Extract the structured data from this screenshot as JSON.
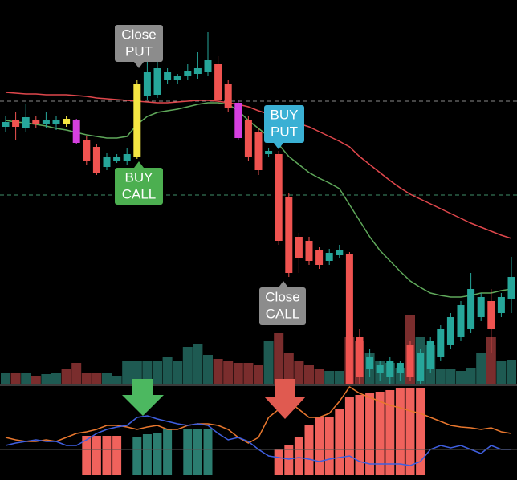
{
  "chart_data": {
    "type": "candlestick",
    "ylim": [
      0,
      480
    ],
    "up_color": "#26a69a",
    "down_color": "#ef5350",
    "candles": [
      {
        "o": 322,
        "h": 335,
        "l": 315,
        "c": 328
      },
      {
        "o": 330,
        "h": 340,
        "l": 305,
        "c": 322
      },
      {
        "o": 320,
        "h": 350,
        "l": 315,
        "c": 334
      },
      {
        "o": 330,
        "h": 335,
        "l": 320,
        "c": 326
      },
      {
        "o": 325,
        "h": 340,
        "l": 320,
        "c": 330
      },
      {
        "o": 325,
        "h": 335,
        "l": 318,
        "c": 330
      },
      {
        "o": 332,
        "h": 335,
        "l": 322,
        "c": 325,
        "color": "#f5e642"
      },
      {
        "o": 330,
        "h": 332,
        "l": 300,
        "c": 302,
        "color": "#d63fe0"
      },
      {
        "o": 305,
        "h": 310,
        "l": 275,
        "c": 280
      },
      {
        "o": 297,
        "h": 300,
        "l": 262,
        "c": 265
      },
      {
        "o": 272,
        "h": 290,
        "l": 268,
        "c": 285
      },
      {
        "o": 280,
        "h": 288,
        "l": 277,
        "c": 284
      },
      {
        "o": 280,
        "h": 295,
        "l": 275,
        "c": 288
      },
      {
        "o": 285,
        "h": 380,
        "l": 282,
        "c": 375,
        "color": "#f5e642"
      },
      {
        "o": 360,
        "h": 405,
        "l": 355,
        "c": 390
      },
      {
        "o": 362,
        "h": 410,
        "l": 358,
        "c": 395
      },
      {
        "o": 380,
        "h": 395,
        "l": 375,
        "c": 390
      },
      {
        "o": 380,
        "h": 388,
        "l": 375,
        "c": 385
      },
      {
        "o": 385,
        "h": 400,
        "l": 380,
        "c": 392
      },
      {
        "o": 388,
        "h": 415,
        "l": 382,
        "c": 395
      },
      {
        "o": 390,
        "h": 440,
        "l": 385,
        "c": 405
      },
      {
        "o": 400,
        "h": 410,
        "l": 350,
        "c": 355
      },
      {
        "o": 375,
        "h": 380,
        "l": 340,
        "c": 345
      },
      {
        "o": 352,
        "h": 355,
        "l": 305,
        "c": 308,
        "color": "#d63fe0"
      },
      {
        "o": 330,
        "h": 335,
        "l": 280,
        "c": 285
      },
      {
        "o": 315,
        "h": 320,
        "l": 262,
        "c": 268
      },
      {
        "o": 288,
        "h": 295,
        "l": 285,
        "c": 292
      },
      {
        "o": 288,
        "h": 292,
        "l": 175,
        "c": 180
      },
      {
        "o": 235,
        "h": 240,
        "l": 135,
        "c": 140
      },
      {
        "o": 185,
        "h": 190,
        "l": 140,
        "c": 158
      },
      {
        "o": 180,
        "h": 185,
        "l": 150,
        "c": 155
      },
      {
        "o": 168,
        "h": 172,
        "l": 145,
        "c": 150
      },
      {
        "o": 155,
        "h": 170,
        "l": 150,
        "c": 165
      },
      {
        "o": 162,
        "h": 175,
        "l": 158,
        "c": 168
      },
      {
        "o": 164,
        "h": 166,
        "l": 0,
        "c": 0
      },
      {
        "o": 60,
        "h": 70,
        "l": 0,
        "c": 10
      },
      {
        "o": 20,
        "h": 45,
        "l": 10,
        "c": 35
      },
      {
        "o": 15,
        "h": 30,
        "l": 5,
        "c": 25
      },
      {
        "o": 10,
        "h": 35,
        "l": 0,
        "c": 30
      },
      {
        "o": 15,
        "h": 30,
        "l": 5,
        "c": 28
      },
      {
        "o": 50,
        "h": 55,
        "l": 5,
        "c": 10
      },
      {
        "o": 5,
        "h": 45,
        "l": 0,
        "c": 40
      },
      {
        "o": 20,
        "h": 60,
        "l": 15,
        "c": 55
      },
      {
        "o": 35,
        "h": 75,
        "l": 30,
        "c": 70
      },
      {
        "o": 50,
        "h": 90,
        "l": 45,
        "c": 85
      },
      {
        "o": 60,
        "h": 105,
        "l": 55,
        "c": 100
      },
      {
        "o": 70,
        "h": 140,
        "l": 65,
        "c": 120
      },
      {
        "o": 85,
        "h": 115,
        "l": 80,
        "c": 110
      },
      {
        "o": 105,
        "h": 120,
        "l": 40,
        "c": 70
      },
      {
        "o": 90,
        "h": 115,
        "l": 85,
        "c": 110
      },
      {
        "o": 108,
        "h": 160,
        "l": 90,
        "c": 135
      }
    ],
    "moving_averages": [
      {
        "color": "#e0474c",
        "values": [
          365,
          364,
          363,
          363,
          362,
          362,
          362,
          361,
          360,
          358,
          357,
          356,
          355,
          354,
          353,
          352,
          352,
          353,
          354,
          355,
          355,
          354,
          352,
          350,
          347,
          342,
          338,
          334,
          330,
          326,
          322,
          316,
          310,
          304,
          297,
          285,
          275,
          265,
          255,
          246,
          238,
          232,
          226,
          220,
          214,
          208,
          202,
          197,
          192,
          187,
          183
        ]
      },
      {
        "color": "#5fa85a",
        "values": [
          330,
          328,
          327,
          325,
          323,
          320,
          318,
          315,
          312,
          310,
          308,
          308,
          310,
          325,
          335,
          340,
          342,
          344,
          347,
          350,
          352,
          352,
          350,
          342,
          330,
          320,
          310,
          300,
          285,
          275,
          265,
          258,
          252,
          245,
          225,
          205,
          185,
          168,
          155,
          142,
          130,
          122,
          115,
          112,
          110,
          110,
          112,
          115,
          115,
          118,
          120
        ]
      }
    ],
    "levels": [
      {
        "value": 354,
        "color": "#8a8a8a"
      },
      {
        "value": 237,
        "color": "#3f8f6a"
      }
    ],
    "volume": {
      "ylim": [
        0,
        480
      ],
      "up_color": "#1e5a52",
      "down_color": "#7a2d2d",
      "values": [
        15,
        15,
        15,
        12,
        14,
        15,
        20,
        28,
        15,
        15,
        15,
        12,
        30,
        30,
        30,
        30,
        35,
        30,
        48,
        52,
        38,
        33,
        30,
        28,
        28,
        25,
        55,
        65,
        40,
        30,
        25,
        20,
        18,
        18,
        60,
        55,
        40,
        30,
        28,
        22,
        88,
        60,
        50,
        20,
        20,
        18,
        22,
        40,
        60,
        30,
        32
      ]
    },
    "indicator": {
      "ylim": [
        -6,
        112
      ],
      "histogram": {
        "values": [
          null,
          null,
          null,
          null,
          null,
          null,
          null,
          null,
          49,
          49,
          49,
          49,
          null,
          47,
          51,
          52,
          57,
          null,
          57,
          57,
          57,
          null,
          null,
          null,
          null,
          null,
          null,
          32,
          37,
          47,
          62,
          72,
          72,
          82,
          97,
          100,
          102,
          104,
          106,
          108,
          109,
          109,
          null,
          null,
          null,
          null,
          null,
          null,
          null,
          null,
          null
        ],
        "colors": [
          null,
          null,
          null,
          null,
          null,
          null,
          null,
          null,
          "#f0625c",
          "#f0625c",
          "#f0625c",
          "#f0625c",
          null,
          "#2b7d70",
          "#2b7d70",
          "#2b7d70",
          "#2b7d70",
          null,
          "#2b7d70",
          "#2b7d70",
          "#2b7d70",
          null,
          null,
          null,
          null,
          null,
          null,
          "#f0625c",
          "#f0625c",
          "#f0625c",
          "#f0625c",
          "#f0625c",
          "#f0625c",
          "#f0625c",
          "#f0625c",
          "#f0625c",
          "#f0625c",
          "#f0625c",
          "#f0625c",
          "#f0625c",
          "#f0625c",
          "#f0625c",
          null,
          null,
          null,
          null,
          null,
          null,
          null,
          null,
          null
        ]
      },
      "lines": [
        {
          "color": "#e8772e",
          "values": [
            47,
            44,
            42,
            42,
            44,
            42,
            47,
            52,
            54,
            57,
            62,
            62,
            60,
            57,
            60,
            62,
            57,
            57,
            62,
            64,
            64,
            62,
            57,
            47,
            40,
            47,
            72,
            82,
            92,
            82,
            72,
            72,
            77,
            92,
            110,
            102,
            97,
            92,
            87,
            84,
            80,
            77,
            72,
            67,
            62,
            60,
            59,
            57,
            59,
            54,
            52
          ]
        },
        {
          "color": "#3f5fe0",
          "values": [
            37,
            40,
            42,
            44,
            42,
            42,
            37,
            37,
            44,
            52,
            57,
            60,
            62,
            72,
            74,
            70,
            67,
            64,
            62,
            64,
            62,
            52,
            44,
            47,
            42,
            32,
            24,
            22,
            20,
            22,
            20,
            17,
            20,
            22,
            24,
            17,
            14,
            14,
            14,
            14,
            12,
            17,
            32,
            37,
            34,
            37,
            32,
            27,
            37,
            32,
            32
          ]
        }
      ]
    },
    "annotations": [
      [
        "Close",
        "PUT"
      ],
      [
        "BUY",
        "CALL"
      ],
      [
        "BUY",
        "PUT"
      ],
      [
        "Close",
        "CALL"
      ]
    ]
  }
}
